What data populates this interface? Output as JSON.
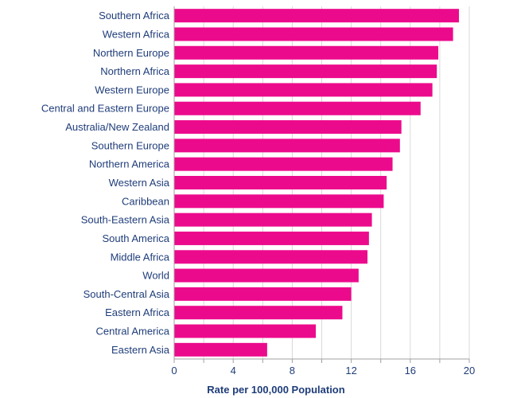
{
  "chart_data": {
    "type": "bar",
    "orientation": "horizontal",
    "categories": [
      "Southern Africa",
      "Western Africa",
      "Northern Europe",
      "Northern Africa",
      "Western Europe",
      "Central and Eastern Europe",
      "Australia/New Zealand",
      "Southern Europe",
      "Northern America",
      "Western Asia",
      "Caribbean",
      "South-Eastern Asia",
      "South America",
      "Middle Africa",
      "World",
      "South-Central Asia",
      "Eastern Africa",
      "Central America",
      "Eastern Asia"
    ],
    "values": [
      19.3,
      18.9,
      17.9,
      17.8,
      17.5,
      16.7,
      15.4,
      15.3,
      14.8,
      14.4,
      14.2,
      13.4,
      13.2,
      13.1,
      12.5,
      12.0,
      11.4,
      9.6,
      6.3
    ],
    "title": "",
    "xlabel": "Rate per 100,000 Population",
    "ylabel": "",
    "xlim": [
      0,
      20
    ],
    "xticks": [
      0,
      4,
      8,
      12,
      16,
      20
    ],
    "grid": "vertical",
    "legend": "none",
    "colors": {
      "bar": "#ec0a8c",
      "text": "#1f3d7a",
      "axis": "#a0a0a0",
      "grid": "#d9d9d9"
    }
  }
}
